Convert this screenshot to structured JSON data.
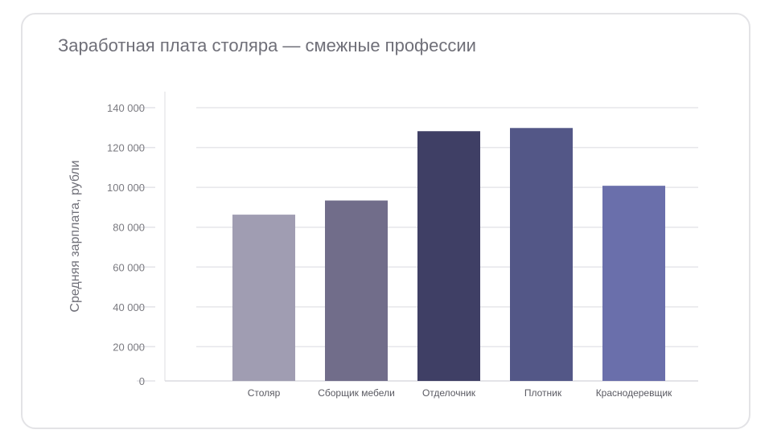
{
  "chart_data": {
    "type": "bar",
    "title": "Заработная плата столяра — смежные профессии",
    "xlabel": "",
    "ylabel": "Средняя зарплата, рубли",
    "ylim": [
      0,
      140000
    ],
    "yticks": [
      0,
      20000,
      40000,
      60000,
      80000,
      100000,
      120000,
      140000
    ],
    "ytick_labels": [
      "0",
      "20 000",
      "40 000",
      "60 000",
      "80 000",
      "100 000",
      "120 000",
      "140 000"
    ],
    "grid": true,
    "categories": [
      "Столяр",
      "Сборщик мебели",
      "Отделочник",
      "Плотник",
      "Краснодеревщик"
    ],
    "values": [
      86300,
      93400,
      128200,
      129800,
      100800
    ],
    "colors": [
      "#a09db2",
      "#716d8a",
      "#3f3f65",
      "#535787",
      "#6a6fab"
    ]
  }
}
